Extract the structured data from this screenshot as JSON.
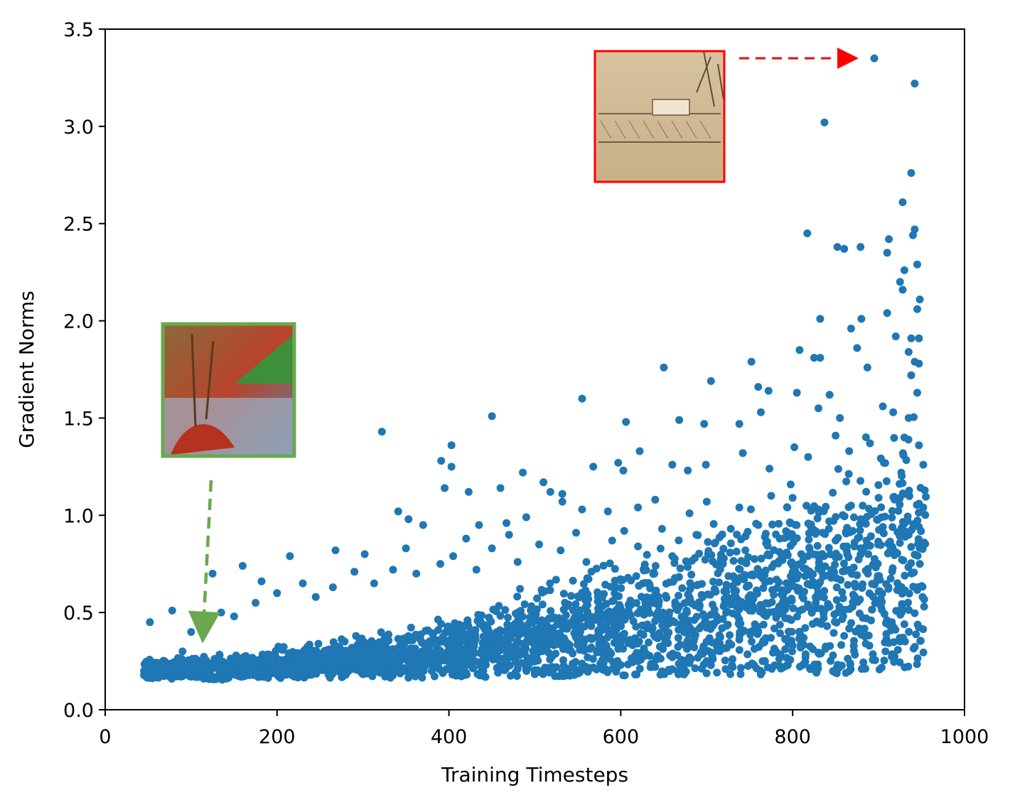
{
  "chart_data": {
    "type": "scatter",
    "title": "",
    "xlabel": "Training Timesteps",
    "ylabel": "Gradient Norms",
    "xlim": [
      0,
      1000
    ],
    "ylim": [
      0.0,
      3.5
    ],
    "x_ticks": [
      "0",
      "200",
      "400",
      "600",
      "800",
      "1000"
    ],
    "y_ticks": [
      "0.0",
      "0.5",
      "1.0",
      "1.5",
      "2.0",
      "2.5",
      "3.0",
      "3.5"
    ],
    "grid": false,
    "legend": "none",
    "point_color": "#1f77b4",
    "annotations": [
      {
        "type": "image-thumbnail",
        "description": "sepia landscape sketch",
        "frame_color": "#ff0000",
        "points_to": [
          895,
          3.35
        ]
      },
      {
        "type": "image-thumbnail",
        "description": "colorful landscape painting",
        "frame_color": "#6aa84f",
        "points_to": [
          112,
          0.22
        ]
      }
    ],
    "series": [
      {
        "values": [
          [
            895,
            3.35
          ],
          [
            942,
            3.22
          ],
          [
            837,
            3.02
          ],
          [
            938,
            2.76
          ],
          [
            928,
            2.61
          ],
          [
            817,
            2.45
          ],
          [
            942,
            2.47
          ],
          [
            912,
            2.42
          ],
          [
            852,
            2.38
          ],
          [
            860,
            2.37
          ],
          [
            879,
            2.38
          ],
          [
            910,
            2.35
          ],
          [
            940,
            2.44
          ],
          [
            945,
            2.29
          ],
          [
            930,
            2.26
          ],
          [
            925,
            2.2
          ],
          [
            928,
            2.16
          ],
          [
            948,
            2.11
          ],
          [
            910,
            2.04
          ],
          [
            945,
            2.06
          ],
          [
            832,
            2.01
          ],
          [
            880,
            2.01
          ],
          [
            868,
            1.96
          ],
          [
            920,
            1.92
          ],
          [
            938,
            1.91
          ],
          [
            947,
            1.91
          ],
          [
            808,
            1.85
          ],
          [
            825,
            1.81
          ],
          [
            832,
            1.81
          ],
          [
            843,
            1.62
          ],
          [
            875,
            1.86
          ],
          [
            887,
            1.76
          ],
          [
            935,
            1.84
          ],
          [
            942,
            1.79
          ],
          [
            938,
            1.72
          ],
          [
            947,
            1.78
          ],
          [
            650,
            1.76
          ],
          [
            705,
            1.69
          ],
          [
            752,
            1.79
          ],
          [
            760,
            1.66
          ],
          [
            772,
            1.64
          ],
          [
            805,
            1.63
          ],
          [
            555,
            1.6
          ],
          [
            450,
            1.51
          ],
          [
            322,
            1.43
          ],
          [
            606,
            1.48
          ],
          [
            668,
            1.49
          ],
          [
            697,
            1.47
          ],
          [
            738,
            1.47
          ],
          [
            763,
            1.53
          ],
          [
            830,
            1.55
          ],
          [
            855,
            1.5
          ],
          [
            905,
            1.56
          ],
          [
            917,
            1.53
          ],
          [
            935,
            1.5
          ],
          [
            945,
            1.63
          ],
          [
            403,
            1.36
          ],
          [
            391,
            1.28
          ],
          [
            403,
            1.25
          ],
          [
            395,
            1.14
          ],
          [
            423,
            1.12
          ],
          [
            460,
            1.14
          ],
          [
            486,
            1.22
          ],
          [
            510,
            1.17
          ],
          [
            518,
            1.12
          ],
          [
            532,
            1.11
          ],
          [
            568,
            1.25
          ],
          [
            597,
            1.27
          ],
          [
            603,
            1.23
          ],
          [
            622,
            1.33
          ],
          [
            660,
            1.26
          ],
          [
            678,
            1.23
          ],
          [
            699,
            1.26
          ],
          [
            742,
            1.32
          ],
          [
            773,
            1.24
          ],
          [
            802,
            1.35
          ],
          [
            818,
            1.3
          ],
          [
            850,
            1.41
          ],
          [
            890,
            1.37
          ],
          [
            930,
            1.4
          ],
          [
            947,
            1.36
          ],
          [
            952,
            1.26
          ],
          [
            341,
            1.02
          ],
          [
            353,
            0.98
          ],
          [
            370,
            0.95
          ],
          [
            435,
            0.95
          ],
          [
            467,
            0.96
          ],
          [
            490,
            0.99
          ],
          [
            532,
            1.07
          ],
          [
            555,
            1.03
          ],
          [
            585,
            1.02
          ],
          [
            620,
            1.04
          ],
          [
            640,
            1.08
          ],
          [
            680,
            1.01
          ],
          [
            700,
            1.07
          ],
          [
            738,
            1.04
          ],
          [
            775,
            1.1
          ],
          [
            800,
            1.09
          ],
          [
            830,
            1.03
          ],
          [
            868,
            1.05
          ],
          [
            900,
            1.09
          ],
          [
            930,
            1.11
          ],
          [
            952,
            1.04
          ],
          [
            947,
            0.94
          ],
          [
            953,
            0.86
          ],
          [
            953,
            0.53
          ],
          [
            930,
            0.44
          ],
          [
            908,
            0.3
          ],
          [
            885,
            0.34
          ],
          [
            860,
            0.38
          ],
          [
            840,
            0.43
          ],
          [
            833,
            0.29
          ],
          [
            815,
            0.27
          ],
          [
            800,
            0.33
          ],
          [
            780,
            0.3
          ],
          [
            765,
            0.25
          ],
          [
            755,
            0.23
          ],
          [
            730,
            0.26
          ],
          [
            700,
            0.25
          ],
          [
            680,
            0.24
          ],
          [
            660,
            0.27
          ],
          [
            640,
            0.22
          ],
          [
            620,
            0.25
          ],
          [
            600,
            0.23
          ],
          [
            580,
            0.24
          ],
          [
            560,
            0.22
          ],
          [
            540,
            0.21
          ],
          [
            520,
            0.22
          ],
          [
            500,
            0.19
          ],
          [
            480,
            0.21
          ],
          [
            460,
            0.22
          ],
          [
            440,
            0.2
          ],
          [
            420,
            0.19
          ],
          [
            400,
            0.21
          ],
          [
            380,
            0.2
          ],
          [
            360,
            0.2
          ],
          [
            340,
            0.2
          ],
          [
            320,
            0.19
          ],
          [
            300,
            0.2
          ],
          [
            280,
            0.18
          ],
          [
            260,
            0.18
          ],
          [
            240,
            0.18
          ],
          [
            220,
            0.17
          ],
          [
            200,
            0.18
          ],
          [
            180,
            0.17
          ],
          [
            160,
            0.17
          ],
          [
            140,
            0.16
          ],
          [
            120,
            0.16
          ],
          [
            100,
            0.17
          ],
          [
            80,
            0.17
          ],
          [
            60,
            0.18
          ],
          [
            50,
            0.2
          ],
          [
            52,
            0.45
          ],
          [
            78,
            0.51
          ],
          [
            90,
            0.3
          ],
          [
            100,
            0.4
          ],
          [
            112,
            0.43
          ],
          [
            125,
            0.7
          ],
          [
            135,
            0.5
          ],
          [
            150,
            0.48
          ],
          [
            160,
            0.74
          ],
          [
            175,
            0.55
          ],
          [
            182,
            0.66
          ],
          [
            200,
            0.6
          ],
          [
            215,
            0.79
          ],
          [
            230,
            0.65
          ],
          [
            245,
            0.58
          ],
          [
            265,
            0.63
          ],
          [
            268,
            0.82
          ],
          [
            290,
            0.71
          ],
          [
            302,
            0.8
          ],
          [
            313,
            0.65
          ],
          [
            335,
            0.72
          ],
          [
            350,
            0.83
          ],
          [
            362,
            0.7
          ],
          [
            390,
            0.75
          ],
          [
            405,
            0.79
          ],
          [
            420,
            0.88
          ],
          [
            432,
            0.72
          ],
          [
            450,
            0.83
          ],
          [
            470,
            0.9
          ],
          [
            480,
            0.76
          ],
          [
            505,
            0.85
          ],
          [
            530,
            0.82
          ],
          [
            548,
            0.91
          ],
          [
            560,
            0.76
          ],
          [
            590,
            0.87
          ],
          [
            604,
            0.92
          ],
          [
            620,
            0.84
          ],
          [
            648,
            0.93
          ],
          [
            660,
            0.79
          ],
          [
            688,
            0.9
          ],
          [
            710,
            0.86
          ],
          [
            728,
            0.93
          ],
          [
            745,
            0.82
          ],
          [
            760,
            0.95
          ],
          [
            785,
            0.88
          ],
          [
            797,
            0.96
          ],
          [
            810,
            0.8
          ],
          [
            835,
            0.91
          ],
          [
            850,
            0.87
          ],
          [
            870,
            0.92
          ],
          [
            888,
            0.8
          ],
          [
            905,
            0.94
          ],
          [
            920,
            0.81
          ],
          [
            935,
            0.9
          ],
          [
            948,
            0.75
          ]
        ]
      }
    ]
  }
}
